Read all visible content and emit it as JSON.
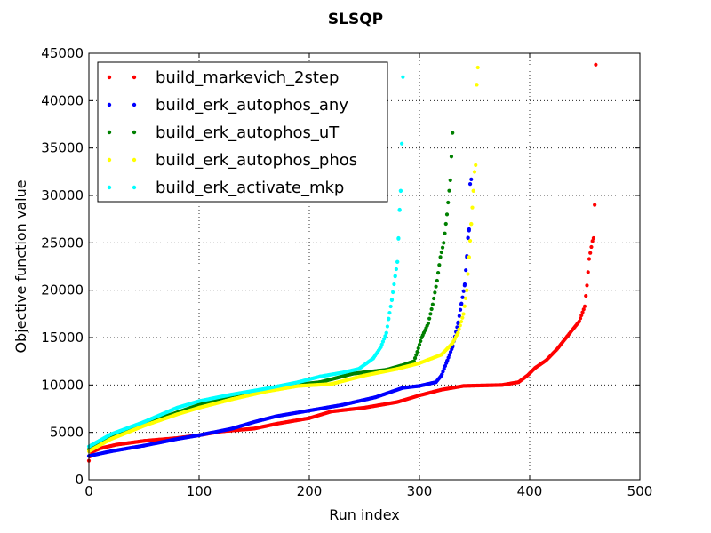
{
  "chart_data": {
    "type": "scatter",
    "title": "SLSQP",
    "xlabel": "Run index",
    "ylabel": "Objective function value",
    "xlim": [
      0,
      500
    ],
    "ylim": [
      0,
      45000
    ],
    "xticks": [
      "0",
      "100",
      "200",
      "300",
      "400",
      "500"
    ],
    "yticks": [
      "0",
      "5000",
      "10000",
      "15000",
      "20000",
      "25000",
      "30000",
      "35000",
      "40000",
      "45000"
    ],
    "grid": true,
    "legend_position": "top-left",
    "series": [
      {
        "name": "build_markevich_2step",
        "color": "#ff0000",
        "n": 460,
        "keypoints": [
          [
            0,
            2000
          ],
          [
            2,
            2900
          ],
          [
            10,
            3300
          ],
          [
            25,
            3700
          ],
          [
            50,
            4100
          ],
          [
            80,
            4400
          ],
          [
            100,
            4700
          ],
          [
            120,
            5100
          ],
          [
            150,
            5400
          ],
          [
            170,
            5900
          ],
          [
            200,
            6500
          ],
          [
            220,
            7200
          ],
          [
            250,
            7600
          ],
          [
            280,
            8200
          ],
          [
            300,
            8900
          ],
          [
            320,
            9500
          ],
          [
            340,
            9900
          ],
          [
            375,
            10000
          ],
          [
            390,
            10300
          ],
          [
            398,
            11000
          ],
          [
            405,
            11800
          ],
          [
            415,
            12600
          ],
          [
            425,
            13800
          ],
          [
            438,
            15700
          ],
          [
            445,
            16700
          ],
          [
            450,
            18300
          ],
          [
            452,
            20500
          ],
          [
            454,
            23300
          ],
          [
            457,
            25200
          ],
          [
            458,
            25500
          ],
          [
            459,
            29000
          ],
          [
            460,
            43800
          ]
        ]
      },
      {
        "name": "build_erk_autophos_any",
        "color": "#0000ff",
        "n": 352,
        "keypoints": [
          [
            0,
            2500
          ],
          [
            20,
            3000
          ],
          [
            50,
            3600
          ],
          [
            80,
            4300
          ],
          [
            100,
            4700
          ],
          [
            130,
            5400
          ],
          [
            150,
            6100
          ],
          [
            170,
            6700
          ],
          [
            200,
            7300
          ],
          [
            230,
            7900
          ],
          [
            260,
            8700
          ],
          [
            285,
            9700
          ],
          [
            300,
            9900
          ],
          [
            315,
            10300
          ],
          [
            320,
            11000
          ],
          [
            325,
            12500
          ],
          [
            330,
            14000
          ],
          [
            335,
            16500
          ],
          [
            338,
            18500
          ],
          [
            341,
            20500
          ],
          [
            343,
            23500
          ],
          [
            344,
            25500
          ],
          [
            345,
            26300
          ],
          [
            346,
            31200
          ],
          [
            347,
            31700
          ]
        ]
      },
      {
        "name": "build_erk_autophos_uT",
        "color": "#008000",
        "n": 330,
        "keypoints": [
          [
            0,
            3200
          ],
          [
            20,
            4500
          ],
          [
            50,
            5900
          ],
          [
            80,
            7100
          ],
          [
            100,
            7900
          ],
          [
            130,
            8900
          ],
          [
            150,
            9300
          ],
          [
            180,
            9900
          ],
          [
            210,
            10300
          ],
          [
            240,
            11200
          ],
          [
            270,
            11600
          ],
          [
            285,
            12100
          ],
          [
            295,
            12500
          ],
          [
            298,
            13500
          ],
          [
            302,
            15000
          ],
          [
            308,
            16500
          ],
          [
            312,
            18500
          ],
          [
            316,
            21000
          ],
          [
            319,
            23500
          ],
          [
            322,
            25000
          ],
          [
            325,
            28000
          ],
          [
            327,
            30500
          ],
          [
            328,
            31600
          ],
          [
            330,
            36600
          ]
        ]
      },
      {
        "name": "build_erk_autophos_phos",
        "color": "#ffff00",
        "n": 352,
        "keypoints": [
          [
            0,
            3000
          ],
          [
            20,
            4300
          ],
          [
            50,
            5700
          ],
          [
            80,
            6900
          ],
          [
            100,
            7600
          ],
          [
            130,
            8500
          ],
          [
            160,
            9300
          ],
          [
            190,
            9900
          ],
          [
            220,
            10100
          ],
          [
            250,
            11000
          ],
          [
            280,
            11700
          ],
          [
            300,
            12300
          ],
          [
            320,
            13200
          ],
          [
            330,
            14400
          ],
          [
            335,
            15500
          ],
          [
            340,
            17500
          ],
          [
            343,
            20000
          ],
          [
            345,
            23500
          ],
          [
            347,
            27000
          ],
          [
            349,
            30500
          ],
          [
            350,
            32500
          ],
          [
            351,
            33200
          ],
          [
            352,
            41700
          ],
          [
            353,
            43500
          ]
        ]
      },
      {
        "name": "build_erk_activate_mkp",
        "color": "#00ffff",
        "n": 283,
        "keypoints": [
          [
            0,
            3500
          ],
          [
            20,
            4800
          ],
          [
            50,
            6100
          ],
          [
            80,
            7600
          ],
          [
            100,
            8300
          ],
          [
            130,
            9000
          ],
          [
            160,
            9600
          ],
          [
            190,
            10300
          ],
          [
            210,
            10900
          ],
          [
            230,
            11300
          ],
          [
            245,
            11700
          ],
          [
            258,
            12800
          ],
          [
            265,
            14000
          ],
          [
            270,
            15500
          ],
          [
            272,
            17000
          ],
          [
            275,
            19000
          ],
          [
            278,
            21500
          ],
          [
            280,
            23000
          ],
          [
            281,
            25500
          ],
          [
            282,
            28500
          ],
          [
            283,
            30500
          ],
          [
            284,
            35500
          ],
          [
            285,
            42500
          ]
        ]
      }
    ]
  }
}
